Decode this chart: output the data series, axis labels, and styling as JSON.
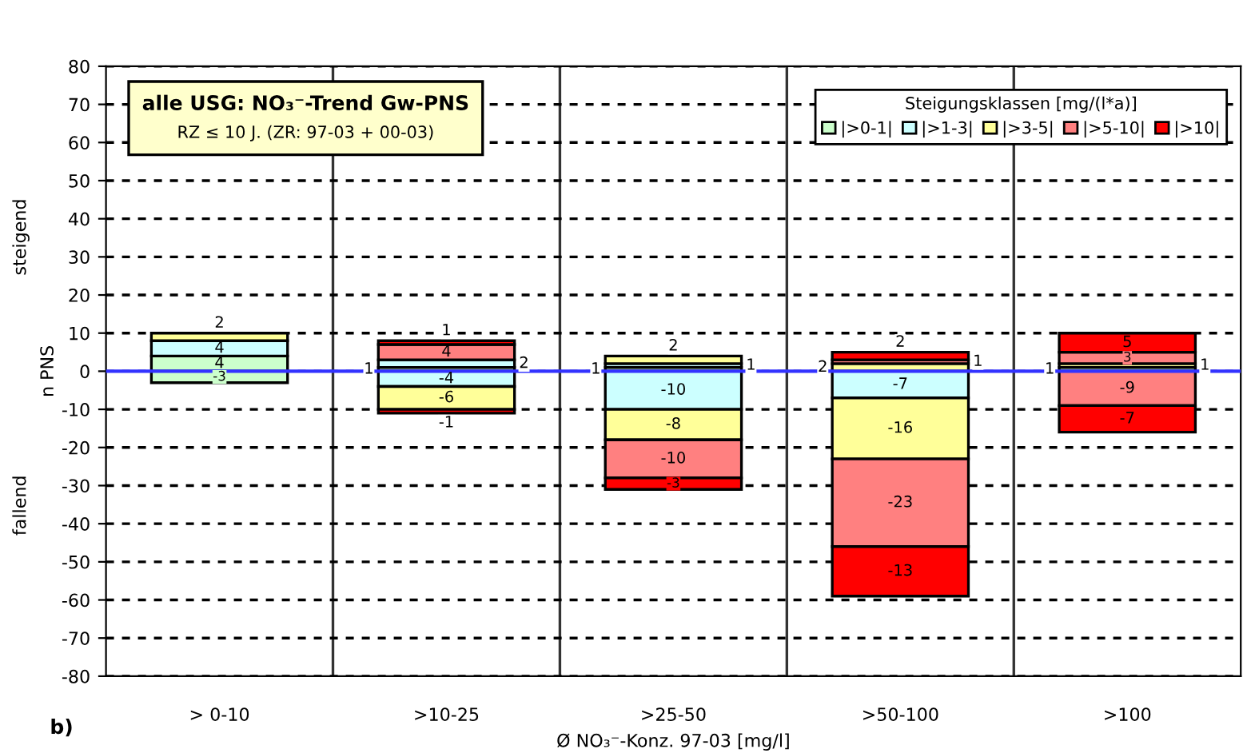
{
  "chart_data": {
    "type": "bar",
    "stacked": true,
    "title": "alle USG: NO₃⁻-Trend Gw-PNS",
    "subtitle": "RZ ≤ 10 J. (ZR: 97-03 + 00-03)",
    "xlabel": "Ø NO₃⁻-Konz. 97-03 [mg/l]",
    "ylabel": "n PNS",
    "legend_title": "Steigungsklassen [mg/(l*a)]",
    "annotations": [
      "steigend",
      "fallend",
      "b)"
    ],
    "categories": [
      "> 0-10",
      ">10-25",
      ">25-50",
      ">50-100",
      ">100"
    ],
    "series": [
      {
        "name": "|>0-1|",
        "color": "#ccffcc",
        "values": [
          4,
          1,
          1,
          null,
          1
        ]
      },
      {
        "name": "|>1-3|",
        "color": "#ccffff",
        "values": [
          4,
          2,
          1,
          null,
          null
        ]
      },
      {
        "name": "|>3-5|",
        "color": "#ffff99",
        "values": [
          2,
          null,
          2,
          2,
          1
        ]
      },
      {
        "name": "|>5-10|",
        "color": "#ff8080",
        "values": [
          null,
          4,
          null,
          1,
          3
        ]
      },
      {
        "name": "|>10|",
        "color": "#ff0000",
        "values": [
          null,
          1,
          null,
          2,
          5
        ]
      },
      {
        "color": "#ccffcc",
        "values": [
          -3,
          null,
          null,
          null,
          null
        ]
      },
      {
        "color": "#ccffff",
        "values": [
          null,
          -4,
          -10,
          -7,
          null
        ]
      },
      {
        "color": "#ffff99",
        "values": [
          null,
          -6,
          -8,
          -16,
          null
        ]
      },
      {
        "color": "#ff8080",
        "values": [
          null,
          null,
          -10,
          -23,
          -9
        ]
      },
      {
        "color": "#ff0000",
        "values": [
          null,
          -1,
          -3,
          -13,
          -7
        ]
      }
    ],
    "data_labels": true,
    "ylim": [
      -80,
      80
    ],
    "yticks": [
      -80,
      -70,
      -60,
      -50,
      -40,
      -30,
      -20,
      -10,
      0,
      10,
      20,
      30,
      40,
      50,
      60,
      70,
      80
    ],
    "ref_lines": [
      {
        "axis": "y",
        "value": 0,
        "color": "#3333ff"
      }
    ],
    "grid": true,
    "legend": "top right"
  }
}
